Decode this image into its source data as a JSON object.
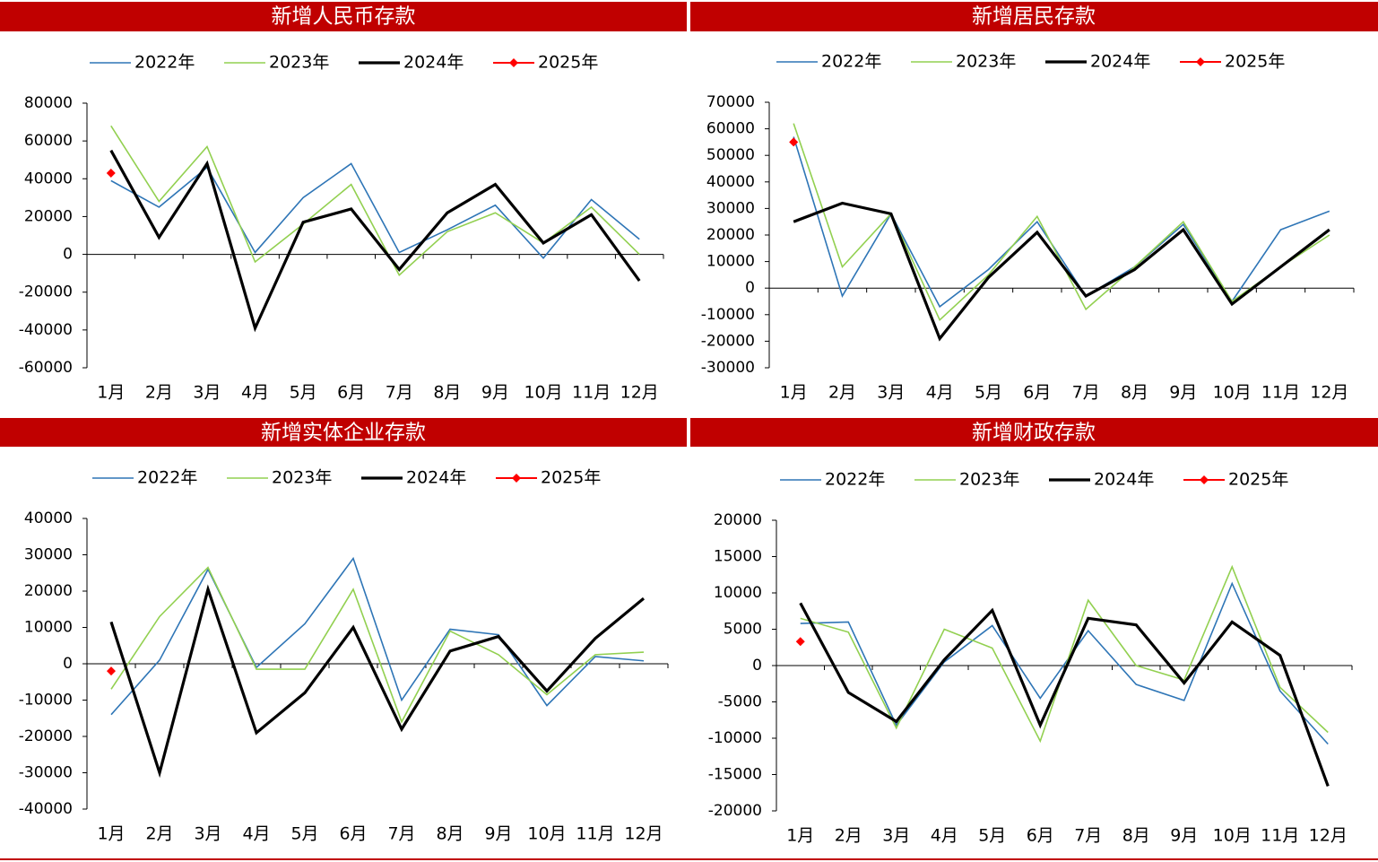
{
  "chart_data": [
    {
      "type": "line",
      "title": "新增人民币存款",
      "categories": [
        "1月",
        "2月",
        "3月",
        "4月",
        "5月",
        "6月",
        "7月",
        "8月",
        "9月",
        "10月",
        "11月",
        "12月"
      ],
      "ylim": [
        -60000,
        80000
      ],
      "yticks": [
        -60000,
        -40000,
        -20000,
        0,
        20000,
        40000,
        60000,
        80000
      ],
      "series": [
        {
          "name": "2022年",
          "color": "#2e75b6",
          "values": [
            39000,
            25000,
            46000,
            1000,
            30000,
            48000,
            1000,
            13000,
            26000,
            -2000,
            29000,
            8000
          ]
        },
        {
          "name": "2023年",
          "color": "#92d050",
          "values": [
            68000,
            28000,
            57000,
            -4000,
            16000,
            37000,
            -11000,
            12000,
            22000,
            6000,
            25000,
            0
          ]
        },
        {
          "name": "2024年",
          "color": "#000000",
          "values": [
            55000,
            9000,
            48000,
            -39000,
            17000,
            24000,
            -8000,
            22000,
            37000,
            6000,
            21000,
            -14000
          ]
        },
        {
          "name": "2025年",
          "color": "#ff0000",
          "marker": "diamond",
          "values": [
            43000,
            null,
            null,
            null,
            null,
            null,
            null,
            null,
            null,
            null,
            null,
            null
          ]
        }
      ]
    },
    {
      "type": "line",
      "title": "新增居民存款",
      "categories": [
        "1月",
        "2月",
        "3月",
        "4月",
        "5月",
        "6月",
        "7月",
        "8月",
        "9月",
        "10月",
        "11月",
        "12月"
      ],
      "ylim": [
        -30000,
        70000
      ],
      "yticks": [
        -30000,
        -20000,
        -10000,
        0,
        10000,
        20000,
        30000,
        40000,
        50000,
        60000,
        70000
      ],
      "series": [
        {
          "name": "2022年",
          "color": "#2e75b6",
          "values": [
            57000,
            -3000,
            28000,
            -7000,
            7000,
            25000,
            -3000,
            8000,
            24000,
            -5000,
            22000,
            29000
          ]
        },
        {
          "name": "2023年",
          "color": "#92d050",
          "values": [
            62000,
            8000,
            28000,
            -12000,
            5000,
            27000,
            -8000,
            8000,
            25000,
            -5000,
            8000,
            20000
          ]
        },
        {
          "name": "2024年",
          "color": "#000000",
          "values": [
            25000,
            32000,
            28000,
            -19000,
            4000,
            21000,
            -3000,
            7000,
            22000,
            -6000,
            8000,
            22000
          ]
        },
        {
          "name": "2025年",
          "color": "#ff0000",
          "marker": "diamond",
          "values": [
            55000,
            null,
            null,
            null,
            null,
            null,
            null,
            null,
            null,
            null,
            null,
            null
          ]
        }
      ]
    },
    {
      "type": "line",
      "title": "新增实体企业存款",
      "categories": [
        "1月",
        "2月",
        "3月",
        "4月",
        "5月",
        "6月",
        "7月",
        "8月",
        "9月",
        "10月",
        "11月",
        "12月"
      ],
      "ylim": [
        -40000,
        40000
      ],
      "yticks": [
        -40000,
        -30000,
        -20000,
        -10000,
        0,
        10000,
        20000,
        30000,
        40000
      ],
      "series": [
        {
          "name": "2022年",
          "color": "#2e75b6",
          "values": [
            -14000,
            1000,
            26000,
            -1000,
            11000,
            29000,
            -10000,
            9500,
            8000,
            -11500,
            2000,
            800
          ]
        },
        {
          "name": "2023年",
          "color": "#92d050",
          "values": [
            -7000,
            13000,
            26500,
            -1500,
            -1500,
            20500,
            -16000,
            9000,
            2500,
            -8500,
            2500,
            3200
          ]
        },
        {
          "name": "2024年",
          "color": "#000000",
          "values": [
            11500,
            -30000,
            20500,
            -19000,
            -8000,
            10000,
            -18000,
            3500,
            7500,
            -7500,
            7000,
            18000
          ]
        },
        {
          "name": "2025年",
          "color": "#ff0000",
          "marker": "diamond",
          "values": [
            -2000,
            null,
            null,
            null,
            null,
            null,
            null,
            null,
            null,
            null,
            null,
            null
          ]
        }
      ]
    },
    {
      "type": "line",
      "title": "新增财政存款",
      "categories": [
        "1月",
        "2月",
        "3月",
        "4月",
        "5月",
        "6月",
        "7月",
        "8月",
        "9月",
        "10月",
        "11月",
        "12月"
      ],
      "ylim": [
        -20000,
        20000
      ],
      "yticks": [
        -20000,
        -15000,
        -10000,
        -5000,
        0,
        5000,
        10000,
        15000,
        20000
      ],
      "series": [
        {
          "name": "2022年",
          "color": "#2e75b6",
          "values": [
            5800,
            6000,
            -8200,
            500,
            5500,
            -4500,
            4800,
            -2600,
            -4800,
            11300,
            -3500,
            -10800
          ]
        },
        {
          "name": "2023年",
          "color": "#92d050",
          "values": [
            6500,
            4600,
            -8600,
            5000,
            2400,
            -10400,
            9000,
            0,
            -2000,
            13600,
            -3000,
            -9200
          ]
        },
        {
          "name": "2024年",
          "color": "#000000",
          "values": [
            8600,
            -3700,
            -7700,
            800,
            7600,
            -8200,
            6500,
            5600,
            -2400,
            6000,
            1400,
            -16600
          ]
        },
        {
          "name": "2025年",
          "color": "#ff0000",
          "marker": "diamond",
          "values": [
            3300,
            null,
            null,
            null,
            null,
            null,
            null,
            null,
            null,
            null,
            null,
            null
          ]
        }
      ]
    }
  ]
}
